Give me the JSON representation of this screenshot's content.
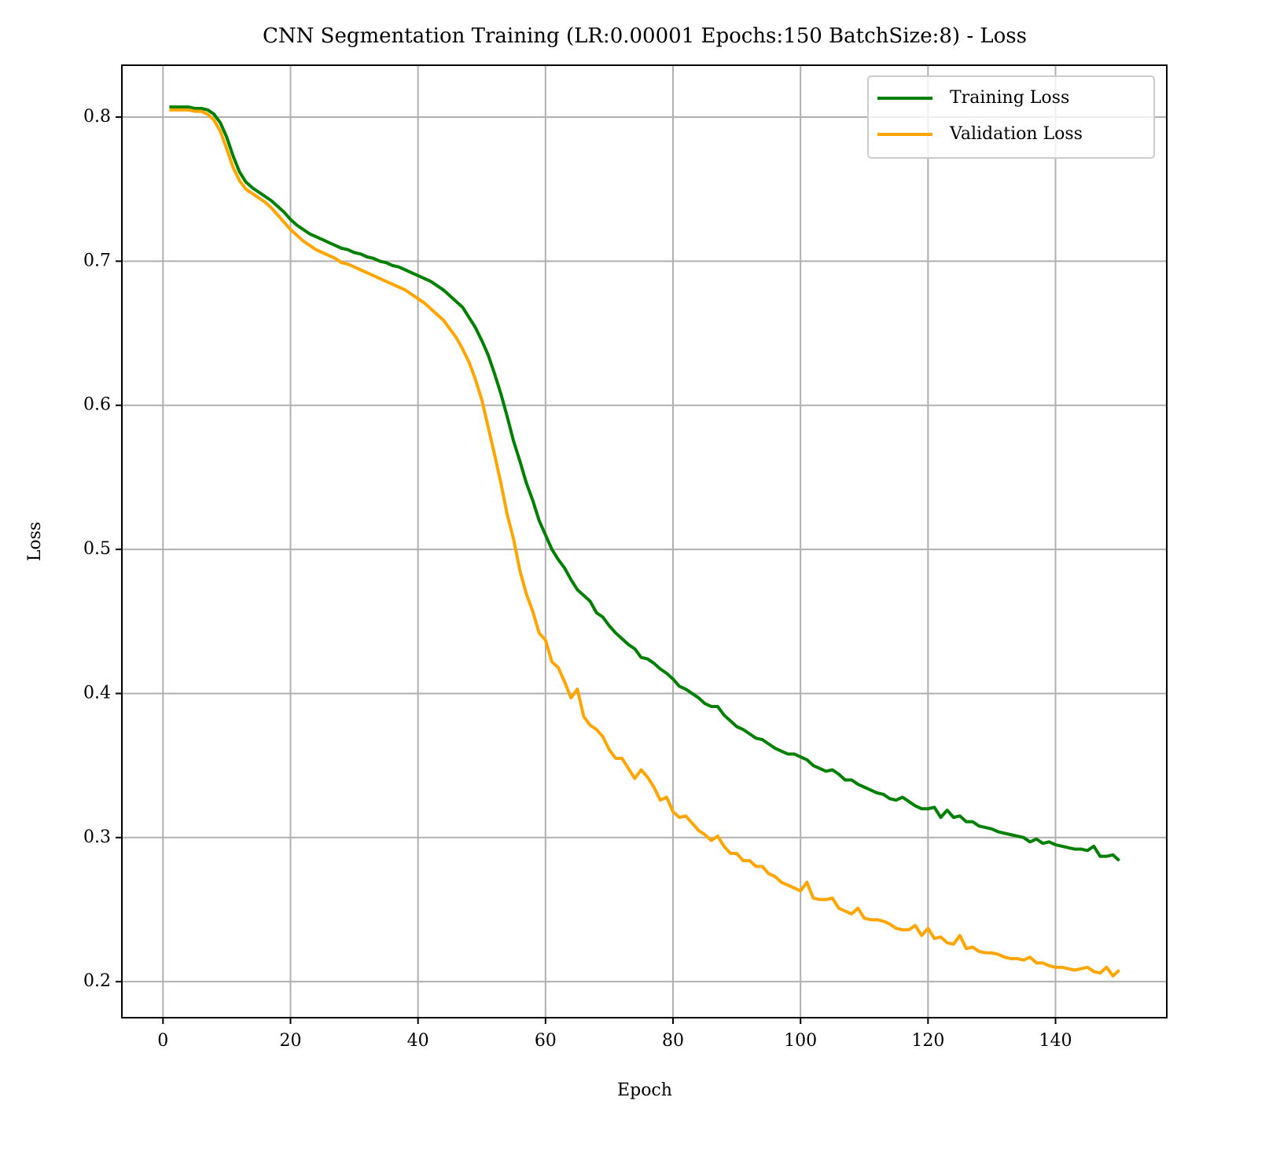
{
  "chart_data": {
    "type": "line",
    "title": "CNN Segmentation Training (LR:0.00001 Epochs:150 BatchSize:8) - Loss",
    "x_label": "Epoch",
    "y_label": "Loss",
    "x": [
      1,
      2,
      3,
      4,
      5,
      6,
      7,
      8,
      9,
      10,
      11,
      12,
      13,
      14,
      15,
      16,
      17,
      18,
      19,
      20,
      21,
      22,
      23,
      24,
      25,
      26,
      27,
      28,
      29,
      30,
      31,
      32,
      33,
      34,
      35,
      36,
      37,
      38,
      39,
      40,
      41,
      42,
      43,
      44,
      45,
      46,
      47,
      48,
      49,
      50,
      51,
      52,
      53,
      54,
      55,
      56,
      57,
      58,
      59,
      60,
      61,
      62,
      63,
      64,
      65,
      66,
      67,
      68,
      69,
      70,
      71,
      72,
      73,
      74,
      75,
      76,
      77,
      78,
      79,
      80,
      81,
      82,
      83,
      84,
      85,
      86,
      87,
      88,
      89,
      90,
      91,
      92,
      93,
      94,
      95,
      96,
      97,
      98,
      99,
      100,
      101,
      102,
      103,
      104,
      105,
      106,
      107,
      108,
      109,
      110,
      111,
      112,
      113,
      114,
      115,
      116,
      117,
      118,
      119,
      120,
      121,
      122,
      123,
      124,
      125,
      126,
      127,
      128,
      129,
      130,
      131,
      132,
      133,
      134,
      135,
      136,
      137,
      138,
      139,
      140,
      141,
      142,
      143,
      144,
      145,
      146,
      147,
      148,
      149,
      150
    ],
    "series": [
      {
        "name": "Training Loss",
        "color": "#008000",
        "values": [
          0.807,
          0.807,
          0.807,
          0.807,
          0.806,
          0.806,
          0.805,
          0.802,
          0.796,
          0.786,
          0.773,
          0.762,
          0.755,
          0.751,
          0.748,
          0.745,
          0.742,
          0.738,
          0.734,
          0.729,
          0.725,
          0.722,
          0.719,
          0.717,
          0.715,
          0.713,
          0.711,
          0.709,
          0.708,
          0.706,
          0.705,
          0.703,
          0.702,
          0.7,
          0.699,
          0.697,
          0.696,
          0.694,
          0.692,
          0.69,
          0.688,
          0.686,
          0.683,
          0.68,
          0.676,
          0.672,
          0.668,
          0.661,
          0.654,
          0.645,
          0.635,
          0.622,
          0.608,
          0.592,
          0.575,
          0.561,
          0.546,
          0.534,
          0.52,
          0.51,
          0.5,
          0.493,
          0.487,
          0.479,
          0.472,
          0.468,
          0.464,
          0.456,
          0.453,
          0.447,
          0.442,
          0.438,
          0.434,
          0.431,
          0.425,
          0.424,
          0.421,
          0.417,
          0.414,
          0.41,
          0.405,
          0.403,
          0.4,
          0.397,
          0.393,
          0.391,
          0.391,
          0.385,
          0.381,
          0.377,
          0.375,
          0.372,
          0.369,
          0.368,
          0.365,
          0.362,
          0.36,
          0.358,
          0.358,
          0.356,
          0.354,
          0.35,
          0.348,
          0.346,
          0.347,
          0.344,
          0.34,
          0.34,
          0.337,
          0.335,
          0.333,
          0.331,
          0.33,
          0.327,
          0.326,
          0.328,
          0.325,
          0.322,
          0.32,
          0.32,
          0.321,
          0.314,
          0.319,
          0.314,
          0.315,
          0.311,
          0.311,
          0.308,
          0.307,
          0.306,
          0.304,
          0.303,
          0.302,
          0.301,
          0.3,
          0.297,
          0.299,
          0.296,
          0.297,
          0.295,
          0.294,
          0.293,
          0.292,
          0.292,
          0.291,
          0.294,
          0.287,
          0.287,
          0.288,
          0.284
        ]
      },
      {
        "name": "Validation Loss",
        "color": "#ffa500",
        "values": [
          0.805,
          0.805,
          0.805,
          0.805,
          0.804,
          0.804,
          0.802,
          0.798,
          0.79,
          0.778,
          0.765,
          0.756,
          0.75,
          0.747,
          0.744,
          0.741,
          0.737,
          0.732,
          0.727,
          0.722,
          0.718,
          0.714,
          0.711,
          0.708,
          0.706,
          0.704,
          0.702,
          0.699,
          0.698,
          0.696,
          0.694,
          0.692,
          0.69,
          0.688,
          0.686,
          0.684,
          0.682,
          0.68,
          0.677,
          0.674,
          0.671,
          0.667,
          0.663,
          0.659,
          0.653,
          0.647,
          0.639,
          0.63,
          0.618,
          0.604,
          0.585,
          0.566,
          0.546,
          0.524,
          0.507,
          0.485,
          0.469,
          0.457,
          0.442,
          0.437,
          0.422,
          0.418,
          0.408,
          0.397,
          0.403,
          0.384,
          0.378,
          0.375,
          0.37,
          0.361,
          0.355,
          0.355,
          0.348,
          0.341,
          0.347,
          0.342,
          0.335,
          0.326,
          0.328,
          0.318,
          0.314,
          0.315,
          0.31,
          0.305,
          0.302,
          0.298,
          0.301,
          0.294,
          0.289,
          0.289,
          0.284,
          0.284,
          0.28,
          0.28,
          0.275,
          0.273,
          0.269,
          0.267,
          0.265,
          0.263,
          0.269,
          0.258,
          0.257,
          0.257,
          0.258,
          0.251,
          0.249,
          0.247,
          0.251,
          0.244,
          0.243,
          0.243,
          0.242,
          0.24,
          0.237,
          0.236,
          0.236,
          0.239,
          0.232,
          0.237,
          0.23,
          0.231,
          0.227,
          0.226,
          0.232,
          0.223,
          0.224,
          0.221,
          0.22,
          0.22,
          0.219,
          0.217,
          0.216,
          0.216,
          0.215,
          0.217,
          0.213,
          0.213,
          0.211,
          0.21,
          0.21,
          0.209,
          0.208,
          0.209,
          0.21,
          0.207,
          0.206,
          0.21,
          0.204,
          0.208
        ]
      }
    ],
    "xlim": [
      -6.45,
      157.45
    ],
    "ylim": [
      0.175,
      0.836
    ],
    "xticks": [
      0,
      20,
      40,
      60,
      80,
      100,
      120,
      140
    ],
    "yticks": [
      0.2,
      0.3,
      0.4,
      0.5,
      0.6,
      0.7,
      0.8
    ],
    "grid": true,
    "legend": "upper right"
  }
}
